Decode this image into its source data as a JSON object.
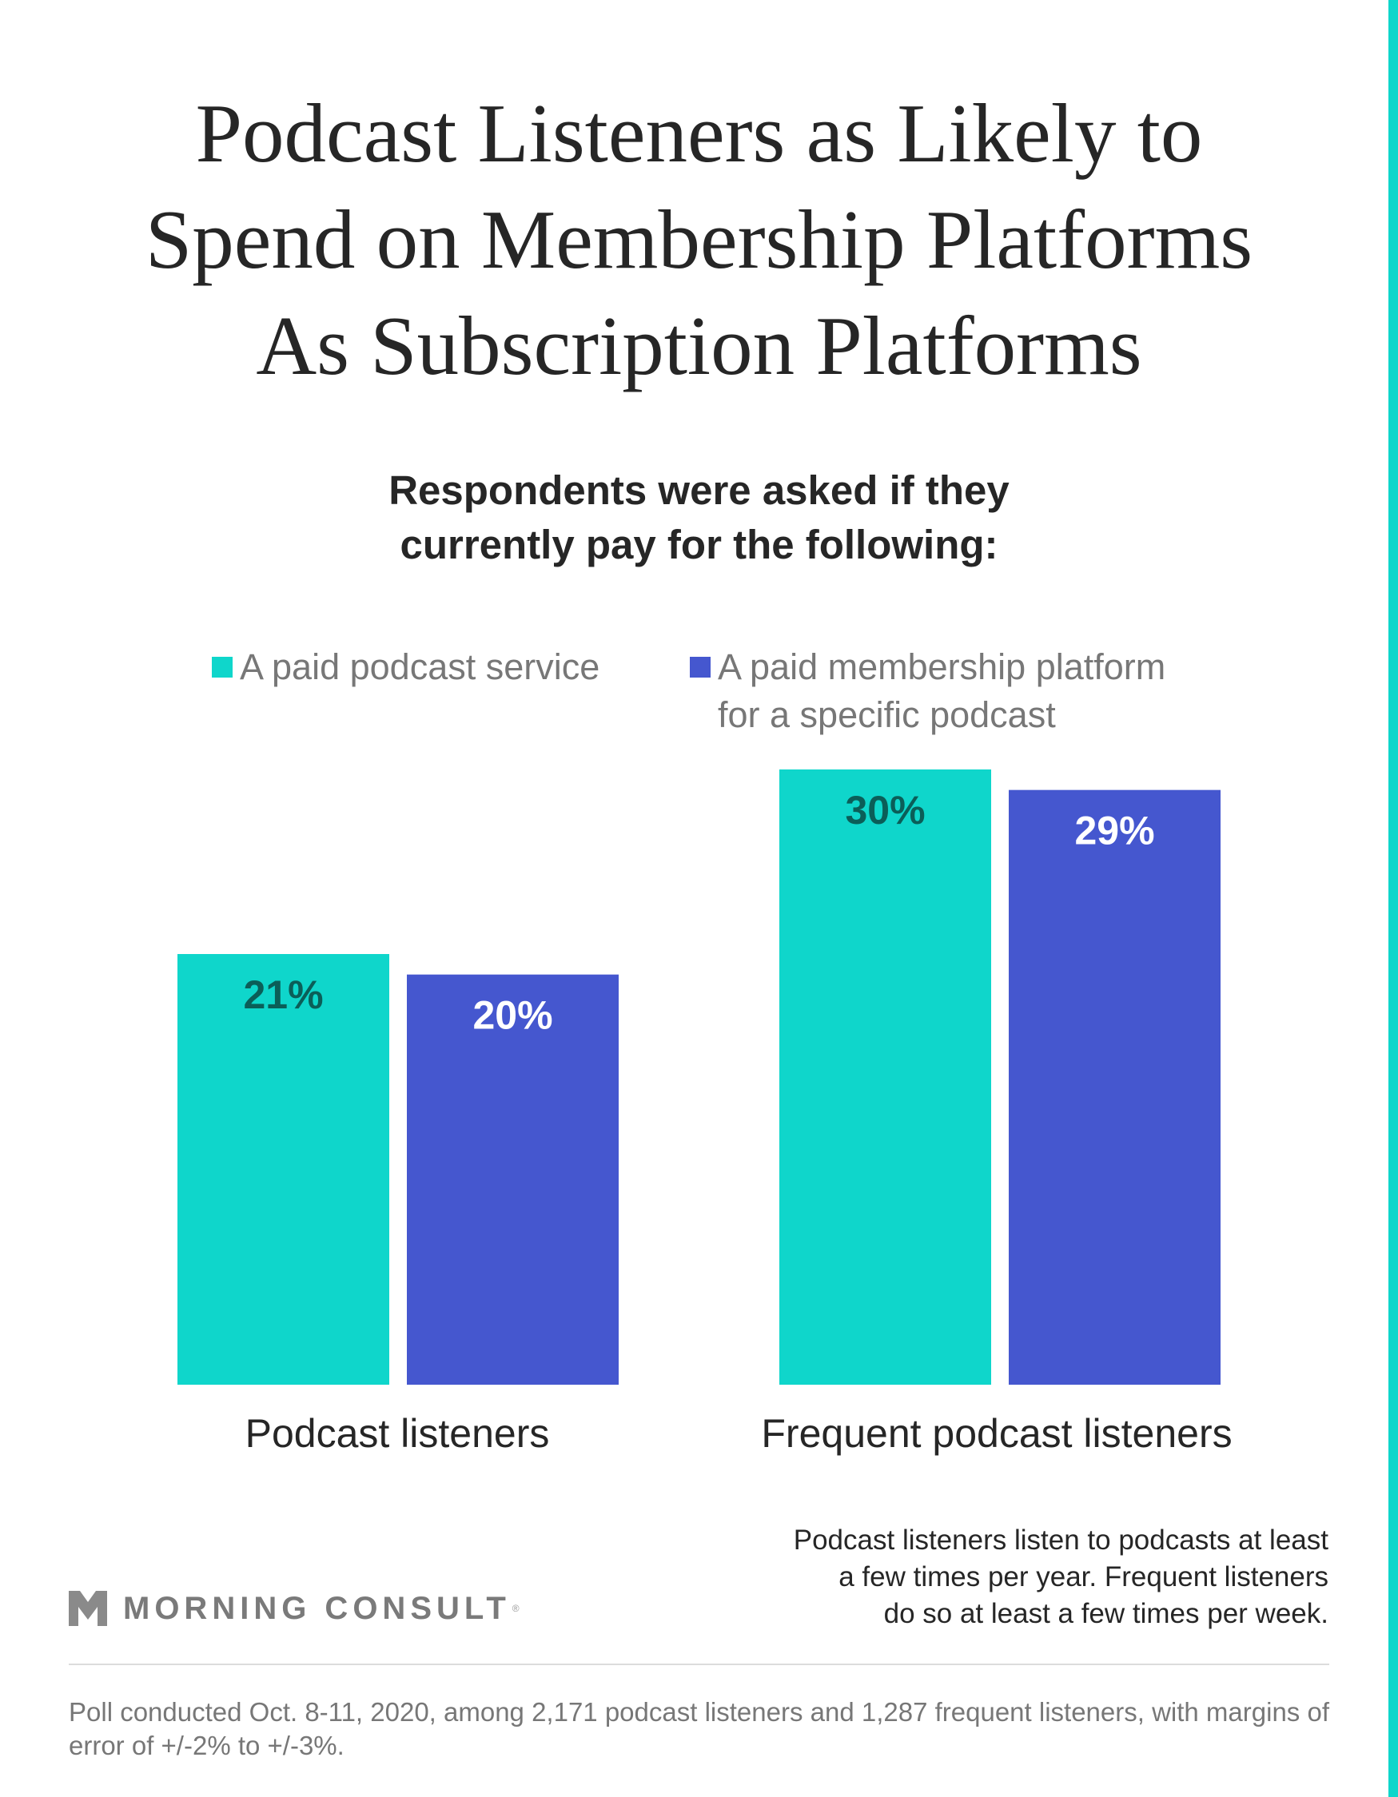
{
  "title": [
    "Podcast Listeners as Likely to",
    "Spend on Membership Platforms",
    "As Subscription Platforms"
  ],
  "subtitle": [
    "Respondents were asked if they",
    "currently pay for the following:"
  ],
  "chart_data": {
    "type": "bar",
    "categories": [
      "Podcast listeners",
      "Frequent podcast listeners"
    ],
    "series": [
      {
        "name": "A paid podcast service",
        "values": [
          21,
          30
        ],
        "labels": [
          "21%",
          "30%"
        ]
      },
      {
        "name": "A paid membership platform for a specific podcast",
        "legend_lines": [
          "A paid membership platform",
          "for a specific podcast"
        ],
        "values": [
          20,
          29
        ],
        "labels": [
          "20%",
          "29%"
        ]
      }
    ],
    "ylim": [
      0,
      30
    ],
    "colors": [
      "#0fd6cb",
      "#4557cf"
    ],
    "label_colors": [
      "#0b5e58",
      "#ffffff"
    ],
    "grid": false,
    "legend": "top"
  },
  "note": [
    "Podcast listeners listen to podcasts at least",
    "a few times per year. Frequent listeners",
    "do so at least a few times per week."
  ],
  "logo": {
    "text": "MORNING CONSULT",
    "reg": "®"
  },
  "footer": "Poll conducted Oct. 8-11, 2020, among 2,171 podcast listeners and 1,287 frequent listeners, with margins of error of +/-2% to +/-3%."
}
